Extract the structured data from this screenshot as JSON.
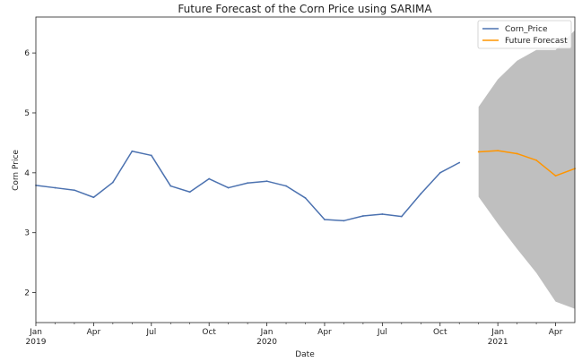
{
  "chart_data": {
    "type": "line",
    "title": "Future Forecast of the Corn Price using SARIMA",
    "xlabel": "Date",
    "ylabel": "Corn Price",
    "xlim": [
      "2019-01",
      "2021-05"
    ],
    "ylim": [
      1.5,
      6.6
    ],
    "y_ticks": [
      2,
      3,
      4,
      5,
      6
    ],
    "x_ticks": [
      {
        "date": "2019-01",
        "label": "Jan",
        "sublabel": "2019"
      },
      {
        "date": "2019-04",
        "label": "Apr",
        "sublabel": ""
      },
      {
        "date": "2019-07",
        "label": "Jul",
        "sublabel": ""
      },
      {
        "date": "2019-10",
        "label": "Oct",
        "sublabel": ""
      },
      {
        "date": "2020-01",
        "label": "Jan",
        "sublabel": "2020"
      },
      {
        "date": "2020-04",
        "label": "Apr",
        "sublabel": ""
      },
      {
        "date": "2020-07",
        "label": "Jul",
        "sublabel": ""
      },
      {
        "date": "2020-10",
        "label": "Oct",
        "sublabel": ""
      },
      {
        "date": "2021-01",
        "label": "Jan",
        "sublabel": "2021"
      },
      {
        "date": "2021-04",
        "label": "Apr",
        "sublabel": ""
      }
    ],
    "grid": false,
    "legend_position": "top-right",
    "series": [
      {
        "name": "Corn_Price",
        "color": "#4c72b0",
        "x": [
          "2019-01",
          "2019-02",
          "2019-03",
          "2019-04",
          "2019-05",
          "2019-06",
          "2019-07",
          "2019-08",
          "2019-09",
          "2019-10",
          "2019-11",
          "2019-12",
          "2020-01",
          "2020-02",
          "2020-03",
          "2020-04",
          "2020-05",
          "2020-06",
          "2020-07",
          "2020-08",
          "2020-09",
          "2020-10",
          "2020-11"
        ],
        "y": [
          3.79,
          3.75,
          3.71,
          3.59,
          3.84,
          4.36,
          4.29,
          3.78,
          3.68,
          3.9,
          3.75,
          3.83,
          3.86,
          3.78,
          3.58,
          3.22,
          3.2,
          3.28,
          3.31,
          3.27,
          3.65,
          4.0,
          4.17
        ]
      },
      {
        "name": "Future Forecast",
        "color": "#ff9500",
        "x": [
          "2020-12",
          "2021-01",
          "2021-02",
          "2021-03",
          "2021-04",
          "2021-05"
        ],
        "y": [
          4.35,
          4.37,
          4.32,
          4.21,
          3.95,
          4.07
        ]
      }
    ],
    "confidence_band": {
      "color": "#a9a9a9",
      "x": [
        "2020-12",
        "2021-01",
        "2021-02",
        "2021-03",
        "2021-04",
        "2021-05"
      ],
      "lower": [
        3.6,
        3.15,
        2.73,
        2.33,
        1.85,
        1.73
      ],
      "upper": [
        5.1,
        5.56,
        5.87,
        6.05,
        6.05,
        6.38
      ]
    }
  }
}
